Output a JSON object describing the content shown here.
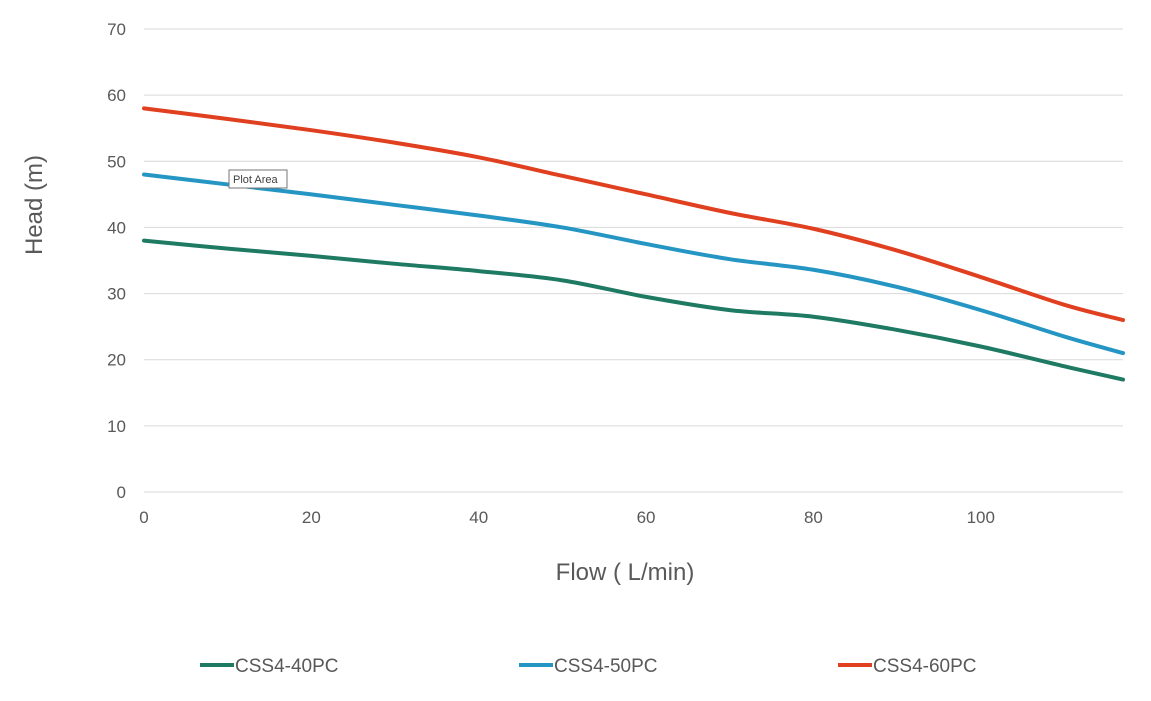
{
  "tooltip": {
    "text": "Plot Area"
  },
  "chart_data": {
    "type": "line",
    "xlabel": "Flow ( L/min)",
    "ylabel": "Head (m)",
    "xlim": [
      0,
      117
    ],
    "ylim": [
      0,
      70
    ],
    "xticks": [
      0,
      20,
      40,
      60,
      80,
      100
    ],
    "yticks": [
      0,
      10,
      20,
      30,
      40,
      50,
      60,
      70
    ],
    "grid": true,
    "legend_position": "bottom",
    "series": [
      {
        "name": "CSS4-40PC",
        "color": "#1f7a63",
        "points": [
          [
            0,
            38
          ],
          [
            10,
            36.8
          ],
          [
            20,
            35.7
          ],
          [
            30,
            34.5
          ],
          [
            40,
            33.4
          ],
          [
            50,
            32
          ],
          [
            60,
            29.5
          ],
          [
            70,
            27.5
          ],
          [
            80,
            26.5
          ],
          [
            90,
            24.5
          ],
          [
            100,
            22
          ],
          [
            110,
            19
          ],
          [
            117,
            17
          ]
        ]
      },
      {
        "name": "CSS4-50PC",
        "color": "#2596c4",
        "points": [
          [
            0,
            48
          ],
          [
            10,
            46.5
          ],
          [
            20,
            45
          ],
          [
            30,
            43.4
          ],
          [
            40,
            41.8
          ],
          [
            50,
            40
          ],
          [
            60,
            37.5
          ],
          [
            70,
            35.2
          ],
          [
            80,
            33.6
          ],
          [
            90,
            31
          ],
          [
            100,
            27.5
          ],
          [
            110,
            23.5
          ],
          [
            117,
            21
          ]
        ]
      },
      {
        "name": "CSS4-60PC",
        "color": "#e0401f",
        "points": [
          [
            0,
            58
          ],
          [
            10,
            56.4
          ],
          [
            20,
            54.7
          ],
          [
            30,
            52.8
          ],
          [
            40,
            50.6
          ],
          [
            50,
            47.8
          ],
          [
            60,
            45
          ],
          [
            70,
            42.2
          ],
          [
            80,
            39.8
          ],
          [
            90,
            36.5
          ],
          [
            100,
            32.5
          ],
          [
            110,
            28.3
          ],
          [
            117,
            26
          ]
        ]
      }
    ]
  }
}
